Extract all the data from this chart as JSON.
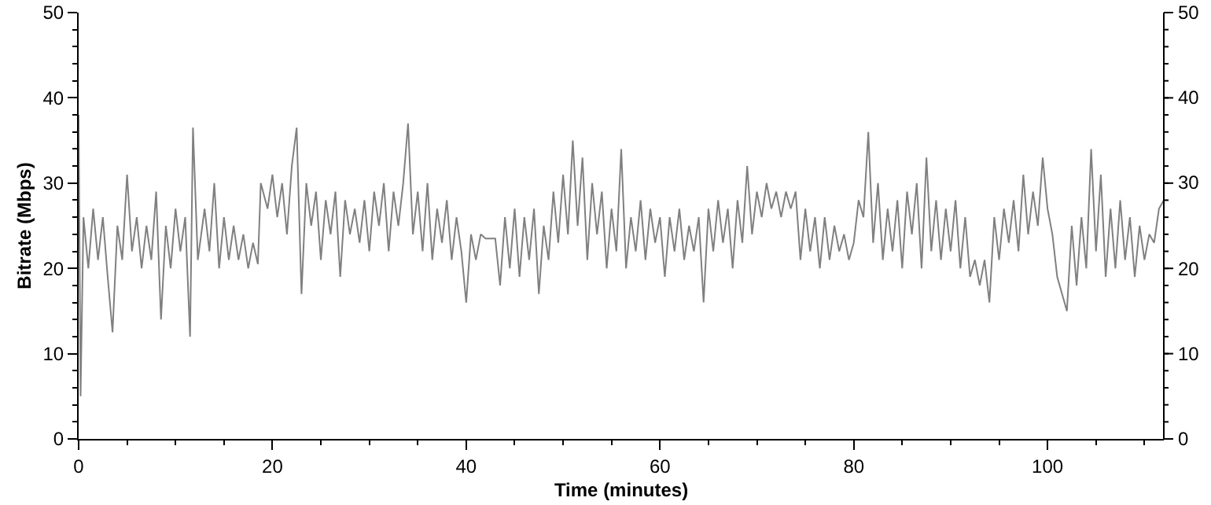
{
  "chart_data": {
    "type": "line",
    "xlabel": "Time (minutes)",
    "ylabel": "Bitrate (Mbps)",
    "xlim": [
      0,
      112
    ],
    "xticks": [
      0,
      20,
      40,
      60,
      80,
      100
    ],
    "ylim": [
      0,
      50
    ],
    "yticks": [
      0,
      10,
      20,
      30,
      40,
      50
    ],
    "y2lim": [
      0,
      50
    ],
    "y2ticks": [
      0,
      10,
      20,
      30,
      40,
      50
    ],
    "grid": false,
    "legend": false,
    "marker": "none",
    "line_style": "solid",
    "series": [
      {
        "color": "#808080",
        "x": [
          0,
          0.2,
          0.5,
          1,
          1.5,
          2,
          2.5,
          3,
          3.5,
          4,
          4.5,
          5,
          5.5,
          6,
          6.5,
          7,
          7.5,
          8,
          8.5,
          9,
          9.5,
          10,
          10.5,
          11,
          11.5,
          11.8,
          12.3,
          13,
          13.5,
          14,
          14.5,
          15,
          15.5,
          16,
          16.5,
          17,
          17.5,
          18,
          18.5,
          18.8,
          19.5,
          20,
          20.5,
          21,
          21.5,
          22,
          22.5,
          23,
          23.5,
          24,
          24.5,
          25,
          25.5,
          26,
          26.5,
          27,
          27.5,
          28,
          28.5,
          29,
          29.5,
          30,
          30.5,
          31,
          31.5,
          32,
          32.5,
          33,
          33.5,
          34,
          34.5,
          35,
          35.5,
          36,
          36.5,
          37,
          37.5,
          38,
          38.5,
          39,
          39.5,
          40,
          40.5,
          41,
          41.5,
          42,
          43,
          43.5,
          44,
          44.5,
          45,
          45.5,
          46,
          46.5,
          47,
          47.5,
          48,
          48.5,
          49,
          49.5,
          50,
          50.5,
          51,
          51.5,
          52,
          52.5,
          53,
          53.5,
          54,
          54.5,
          55,
          55.5,
          56,
          56.5,
          57,
          57.5,
          58,
          58.5,
          59,
          59.5,
          60,
          60.5,
          61,
          61.5,
          62,
          62.5,
          63,
          63.5,
          64,
          64.5,
          65,
          65.5,
          66,
          66.5,
          67,
          67.5,
          68,
          68.5,
          69,
          69.5,
          70,
          70.5,
          71,
          71.5,
          72,
          72.5,
          73,
          73.5,
          74,
          74.5,
          75,
          75.5,
          76,
          76.5,
          77,
          77.5,
          78,
          78.5,
          79,
          79.5,
          80,
          80.5,
          81,
          81.5,
          82,
          82.5,
          83,
          83.5,
          84,
          84.5,
          85,
          85.5,
          86,
          86.5,
          87,
          87.5,
          88,
          88.5,
          89,
          89.5,
          90,
          90.5,
          91,
          91.5,
          92,
          92.5,
          93,
          93.5,
          94,
          94.5,
          95,
          95.5,
          96,
          96.5,
          97,
          97.5,
          98,
          98.5,
          99,
          99.5,
          100,
          100.5,
          101,
          101.5,
          102,
          102.5,
          103,
          103.5,
          104,
          104.5,
          105,
          105.5,
          106,
          106.5,
          107,
          107.5,
          108,
          108.5,
          109,
          109.5,
          110,
          110.5,
          111,
          111.5,
          112
        ],
        "values": [
          38,
          5,
          26,
          20,
          27,
          21,
          26,
          19,
          12.5,
          25,
          21,
          31,
          22,
          26,
          20,
          25,
          21,
          29,
          14,
          25,
          20,
          27,
          22,
          26,
          12,
          36.5,
          21,
          27,
          22,
          30,
          20,
          26,
          21,
          25,
          21,
          24,
          20,
          23,
          20.5,
          30,
          27,
          31,
          26,
          30,
          24,
          32,
          36.5,
          17,
          30,
          25,
          29,
          21,
          28,
          24,
          29,
          19,
          28,
          24,
          27,
          23,
          28,
          22,
          29,
          25,
          30,
          22,
          29,
          25,
          30,
          37,
          24,
          29,
          22,
          30,
          21,
          27,
          23,
          28,
          21,
          26,
          22,
          16,
          24,
          21,
          24,
          23.5,
          23.5,
          18,
          26,
          20,
          27,
          19,
          26,
          21,
          27,
          17,
          25,
          21,
          29,
          23,
          31,
          24,
          35,
          25,
          33,
          21,
          30,
          24,
          29,
          20,
          27,
          22,
          34,
          20,
          26,
          22,
          28,
          21,
          27,
          23,
          26,
          19,
          26,
          22,
          27,
          21,
          25,
          22,
          26,
          16,
          27,
          22,
          28,
          23,
          27,
          20,
          28,
          23,
          32,
          24,
          29,
          26,
          30,
          27,
          29,
          26,
          29,
          27,
          29,
          21,
          27,
          22,
          26,
          20,
          26,
          21,
          25,
          22,
          24,
          21,
          23,
          28,
          26,
          36,
          23,
          30,
          21,
          27,
          22,
          28,
          20,
          29,
          24,
          30,
          20,
          33,
          22,
          28,
          21,
          27,
          22,
          28,
          20,
          26,
          19,
          21,
          18,
          21,
          16,
          26,
          21,
          27,
          23,
          28,
          22,
          31,
          24,
          29,
          25,
          33,
          27,
          24,
          19,
          17,
          15,
          25,
          18,
          26,
          20,
          34,
          22,
          31,
          19,
          27,
          20,
          28,
          21,
          26,
          19,
          25,
          21,
          24,
          23,
          27,
          28
        ]
      }
    ]
  }
}
